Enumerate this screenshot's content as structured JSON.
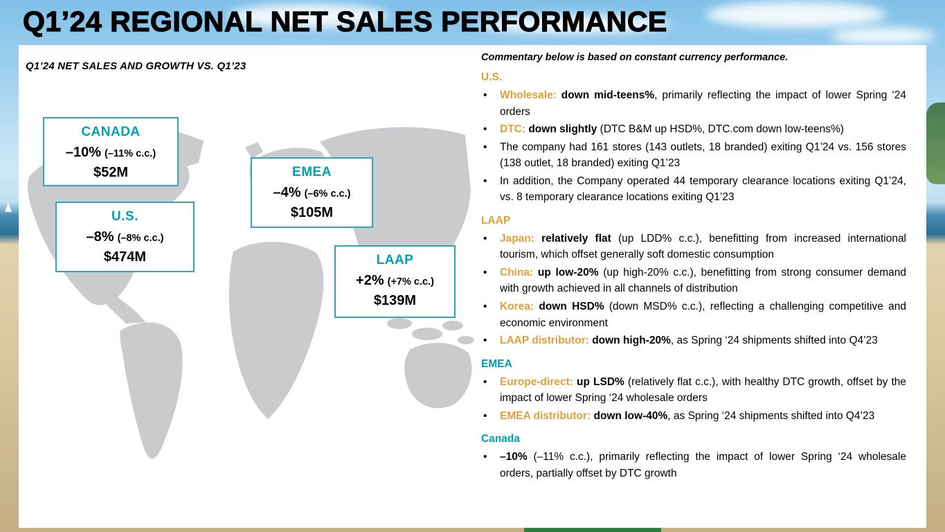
{
  "slide": {
    "title": "Q1’24 REGIONAL NET SALES PERFORMANCE"
  },
  "map_panel": {
    "subtitle": "Q1’24 NET SALES AND GROWTH VS. Q1’23",
    "callouts": [
      {
        "region": "CANADA",
        "growth": "–10%",
        "cc": "(–11% c.c.)",
        "net_sales": "$52M"
      },
      {
        "region": "U.S.",
        "growth": "–8%",
        "cc": "(–8% c.c.)",
        "net_sales": "$474M"
      },
      {
        "region": "EMEA",
        "growth": "–4%",
        "cc": "(–6% c.c.)",
        "net_sales": "$105M"
      },
      {
        "region": "LAAP",
        "growth": "+2%",
        "cc": "(+7% c.c.)",
        "net_sales": "$139M"
      }
    ]
  },
  "commentary": {
    "intro": "Commentary below is based on constant currency performance.",
    "lead_color": "#dfa13c",
    "sections": [
      {
        "header": "U.S.",
        "color": "#dfa13c",
        "bullets": [
          {
            "segments": [
              {
                "style": "lead",
                "text": "Wholesale: "
              },
              {
                "style": "b",
                "text": "down mid-teens%"
              },
              {
                "style": "n",
                "text": ", primarily reflecting the impact of lower Spring ‘24 orders"
              }
            ]
          },
          {
            "segments": [
              {
                "style": "lead",
                "text": "DTC: "
              },
              {
                "style": "b",
                "text": "down slightly "
              },
              {
                "style": "n",
                "text": "(DTC B&M up HSD%, DTC.com down low-teens%)"
              }
            ]
          },
          {
            "segments": [
              {
                "style": "n",
                "text": "The company had 161 stores (143 outlets, 18 branded) exiting Q1’24 vs. 156 stores (138 outlet, 18 branded) exiting Q1’23"
              }
            ]
          },
          {
            "segments": [
              {
                "style": "n",
                "text": "In addition, the Company operated 44 temporary clearance locations exiting Q1’24, vs. 8 temporary clearance locations exiting Q1’23"
              }
            ]
          }
        ]
      },
      {
        "header": "LAAP",
        "color": "#dfa13c",
        "bullets": [
          {
            "segments": [
              {
                "style": "lead",
                "text": "Japan: "
              },
              {
                "style": "b",
                "text": "relatively flat "
              },
              {
                "style": "n",
                "text": "(up LDD% c.c.), benefitting from increased international tourism, which offset generally soft domestic consumption"
              }
            ]
          },
          {
            "segments": [
              {
                "style": "lead",
                "text": "China: "
              },
              {
                "style": "b",
                "text": "up low-20% "
              },
              {
                "style": "n",
                "text": "(up high-20% c.c.), benefitting from strong consumer demand with growth achieved in all channels of distribution"
              }
            ]
          },
          {
            "segments": [
              {
                "style": "lead",
                "text": "Korea: "
              },
              {
                "style": "b",
                "text": "down HSD% "
              },
              {
                "style": "n",
                "text": "(down MSD% c.c.), reflecting a challenging competitive and economic environment"
              }
            ]
          },
          {
            "segments": [
              {
                "style": "lead",
                "text": "LAAP distributor: "
              },
              {
                "style": "b",
                "text": "down high-20%"
              },
              {
                "style": "n",
                "text": ", as Spring ‘24 shipments shifted into Q4’23"
              }
            ]
          }
        ]
      },
      {
        "header": "EMEA",
        "color": "#00a0b2",
        "bullets": [
          {
            "segments": [
              {
                "style": "lead",
                "text": "Europe-direct: "
              },
              {
                "style": "b",
                "text": "up LSD% "
              },
              {
                "style": "n",
                "text": "(relatively flat c.c.), with healthy DTC growth, offset by the impact of lower Spring ‘24 wholesale orders"
              }
            ]
          },
          {
            "segments": [
              {
                "style": "lead",
                "text": "EMEA distributor: "
              },
              {
                "style": "b",
                "text": "down low-40%"
              },
              {
                "style": "n",
                "text": ", as Spring ‘24 shipments shifted into Q4’23"
              }
            ]
          }
        ]
      },
      {
        "header": "Canada",
        "color": "#00a0b2",
        "bullets": [
          {
            "segments": [
              {
                "style": "b",
                "text": "–10% "
              },
              {
                "style": "n",
                "text": "(–11% c.c.), primarily reflecting the impact of lower Spring ‘24 wholesale orders, partially offset by DTC growth"
              }
            ]
          }
        ]
      }
    ]
  },
  "colors": {
    "teal": "#00a0b2",
    "gold": "#dfa13c",
    "map_gray": "#c9cbcc"
  }
}
